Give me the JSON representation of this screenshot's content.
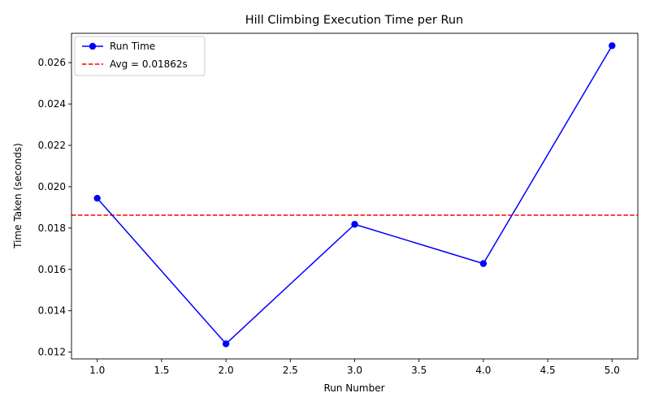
{
  "chart_data": {
    "type": "line",
    "title": "Hill Climbing Execution Time per Run",
    "xlabel": "Run Number",
    "ylabel": "Time Taken (seconds)",
    "xlim": [
      0.8,
      5.2
    ],
    "ylim": [
      0.01167,
      0.02742
    ],
    "x_ticks": [
      1.0,
      1.5,
      2.0,
      2.5,
      3.0,
      3.5,
      4.0,
      4.5,
      5.0
    ],
    "x_tick_labels": [
      "1.0",
      "1.5",
      "2.0",
      "2.5",
      "3.0",
      "3.5",
      "4.0",
      "4.5",
      "5.0"
    ],
    "y_ticks": [
      0.012,
      0.014,
      0.016,
      0.018,
      0.02,
      0.022,
      0.024,
      0.026
    ],
    "y_tick_labels": [
      "0.012",
      "0.014",
      "0.016",
      "0.018",
      "0.020",
      "0.022",
      "0.024",
      "0.026"
    ],
    "grid": false,
    "legend_position": "top-left",
    "series": [
      {
        "name": "Run Time",
        "color": "#0000ff",
        "marker": "circle",
        "x": [
          1,
          2,
          3,
          4,
          5
        ],
        "values": [
          0.01944,
          0.0124,
          0.01818,
          0.01628,
          0.02682
        ]
      }
    ],
    "reference_lines": [
      {
        "name": "Avg = 0.01862s",
        "orientation": "horizontal",
        "value": 0.01862,
        "color": "#ff0000",
        "style": "dashed"
      }
    ]
  }
}
